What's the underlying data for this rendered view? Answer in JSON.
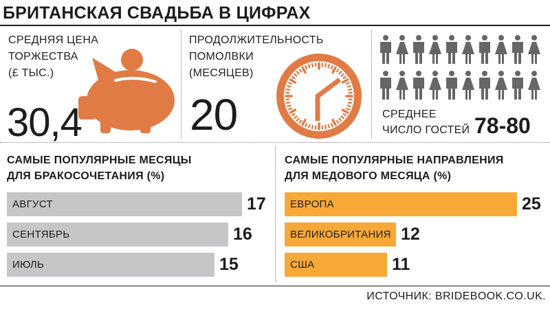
{
  "title": "БРИТАНСКАЯ СВАДЬБА В ЦИФРАХ",
  "colors": {
    "accent": "#e07b45",
    "grey_bar": "#c5c6c8",
    "orange_bar": "#f7a937",
    "text": "#1c1c1c"
  },
  "stats": {
    "cost": {
      "label_lines": [
        "СРЕДНЯЯ ЦЕНА",
        "ТОРЖЕСТВА",
        "(£ ТЫС.)"
      ],
      "value": "30,4",
      "icon": "piggy-bank-icon"
    },
    "engagement": {
      "label_lines": [
        "ПРОДОЛЖИТЕЛЬНОСТЬ",
        "ПОМОЛВКИ",
        "(МЕСЯЦЕВ)"
      ],
      "value": "20",
      "icon": "clock-icon"
    },
    "guests": {
      "label_lines": [
        "СРЕДНЕЕ",
        "ЧИСЛО ГОСТЕЙ"
      ],
      "value": "78-80",
      "icon": "people-icon"
    }
  },
  "chart_data": [
    {
      "type": "bar",
      "orientation": "horizontal",
      "title_lines": [
        "САМЫЕ ПОПУЛЯРНЫЕ МЕСЯЦЫ",
        "ДЛЯ БРАКОСОЧЕТАНИЯ (%)"
      ],
      "categories": [
        "АВГУСТ",
        "СЕНТЯБРЬ",
        "ИЮЛЬ"
      ],
      "values": [
        17,
        16,
        15
      ],
      "color": "#c5c6c8"
    },
    {
      "type": "bar",
      "orientation": "horizontal",
      "title_lines": [
        "САМЫЕ ПОПУЛЯРНЫЕ НАПРАВЛЕНИЯ",
        "ДЛЯ МЕДОВОГО МЕСЯЦА (%)"
      ],
      "categories": [
        "ЕВРОПА",
        "ВЕЛИКОБРИТАНИЯ",
        "США"
      ],
      "values": [
        25,
        12,
        11
      ],
      "color": "#f7a937"
    }
  ],
  "source": "ИСТОЧНИК: BRIDEBOOK.CO.UK."
}
